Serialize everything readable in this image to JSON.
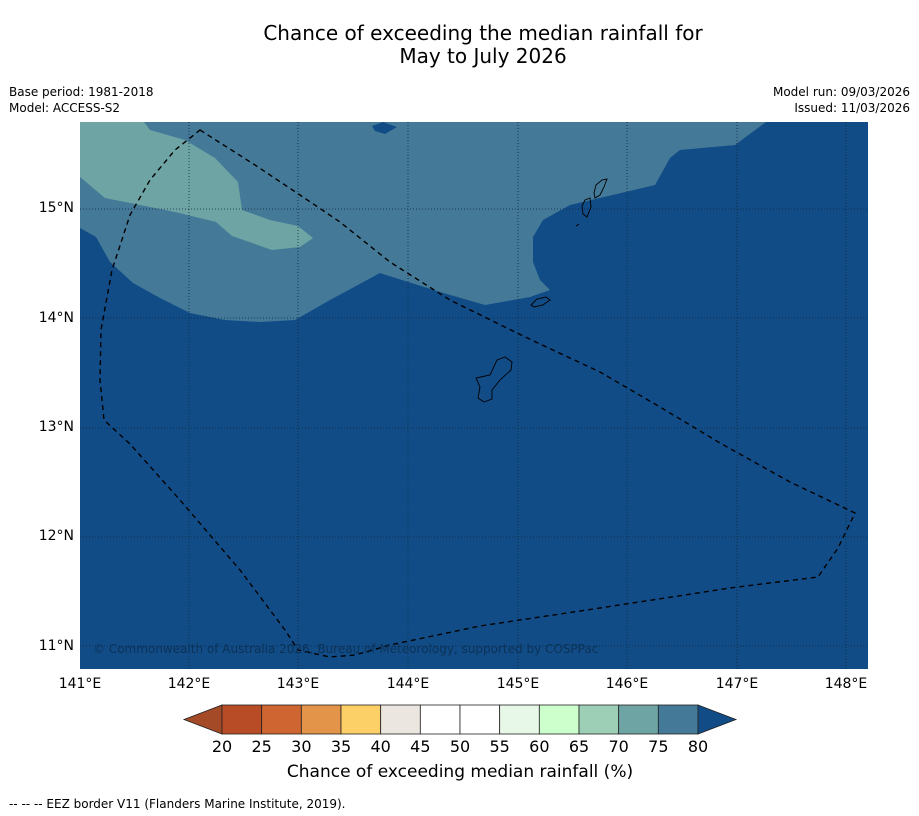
{
  "title_line1": "Chance of exceeding the median rainfall for",
  "title_line2": "May to July 2026",
  "base_period": "Base period: 1981-2018",
  "model": "Model: ACCESS-S2",
  "model_run": "Model run: 09/03/2026",
  "issued": "Issued: 11/03/2026",
  "copyright": "© Commonwealth of Australia 2026, Bureau of Meteorology, supported by COSPPac",
  "colorbar_title": "Chance of exceeding median rainfall (%)",
  "footer": "--  --  -- EEZ border V11 (Flanders Marine Institute, 2019).",
  "lat_labels": [
    "15°N",
    "14°N",
    "13°N",
    "12°N",
    "11°N"
  ],
  "lon_labels": [
    "141°E",
    "142°E",
    "143°E",
    "144°E",
    "145°E",
    "146°E",
    "147°E",
    "148°E"
  ],
  "colorbar_ticks": [
    "20",
    "25",
    "30",
    "35",
    "40",
    "45",
    "50",
    "55",
    "60",
    "65",
    "70",
    "75",
    "80"
  ],
  "colorbar_colors": [
    "#a54a27",
    "#b84c27",
    "#cf6530",
    "#e39448",
    "#fdd067",
    "#ece6e0",
    "#ffffff",
    "#ffffff",
    "#e7f7e8",
    "#ccffcc",
    "#9dceb6",
    "#6ea4a4",
    "#447a98",
    "#124c87"
  ],
  "legend_colors": {
    "c80plus": "#124c87",
    "c75_80": "#447a98",
    "c70_75": "#6ea4a4"
  }
}
